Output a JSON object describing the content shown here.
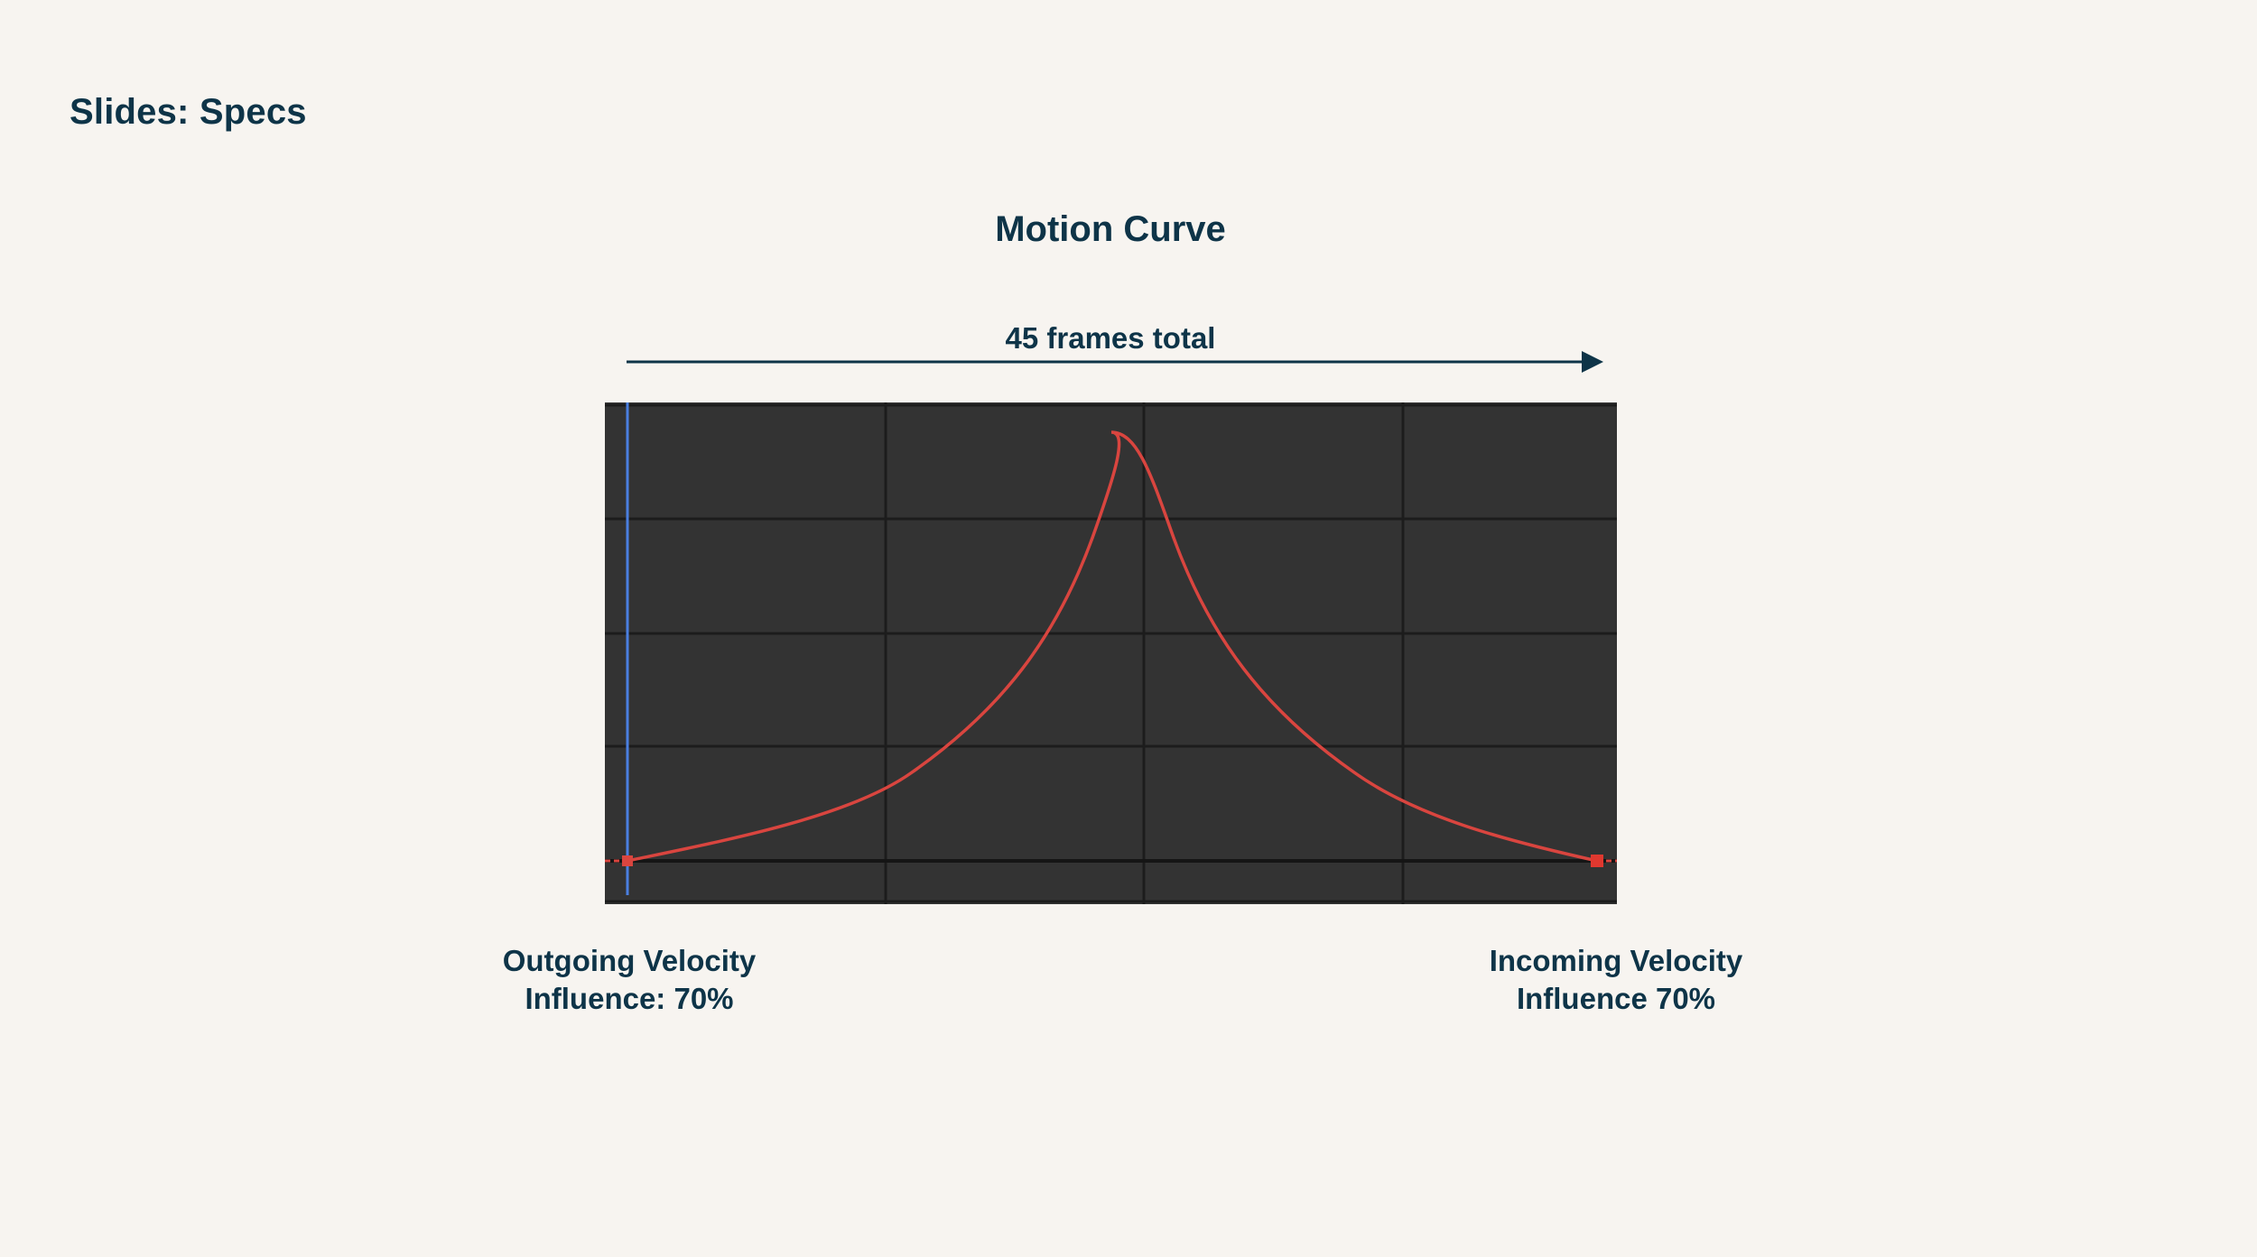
{
  "page": {
    "title": "Slides: Specs"
  },
  "diagram": {
    "title": "Motion Curve",
    "duration_label": "45 frames total",
    "outgoing": {
      "line1": "Outgoing Velocity",
      "line2": "Influence: 70%"
    },
    "incoming": {
      "line1": "Incoming Velocity",
      "line2": "Influence 70%"
    }
  },
  "colors": {
    "background": "#f7f4f0",
    "text": "#0e3448",
    "graph_background": "#333333",
    "grid": "#1c1c1c",
    "curve": "#d9453f",
    "playhead": "#4a7fe0"
  }
}
